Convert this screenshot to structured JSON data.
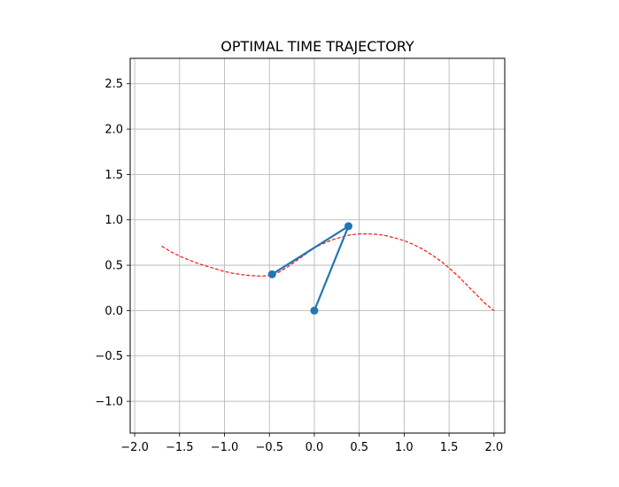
{
  "chart_data": {
    "type": "line",
    "title": "OPTIMAL TIME TRAJECTORY",
    "xlabel": "",
    "ylabel": "",
    "xlim": [
      -2.05,
      2.12
    ],
    "ylim": [
      -1.35,
      2.78
    ],
    "grid": true,
    "xticks": [
      -2.0,
      -1.5,
      -1.0,
      -0.5,
      0.0,
      0.5,
      1.0,
      1.5,
      2.0
    ],
    "xtick_labels": [
      "−2.0",
      "−1.5",
      "−1.0",
      "−0.5",
      "0.0",
      "0.5",
      "1.0",
      "1.5",
      "2.0"
    ],
    "yticks": [
      -1.0,
      -0.5,
      0.0,
      0.5,
      1.0,
      1.5,
      2.0,
      2.5
    ],
    "ytick_labels": [
      "−1.0",
      "−0.5",
      "0.0",
      "0.5",
      "1.0",
      "1.5",
      "2.0",
      "2.5"
    ],
    "series": [
      {
        "style": "dashed",
        "color": "#ff0000",
        "x": [
          -1.7,
          -1.6,
          -1.5,
          -1.4,
          -1.3,
          -1.2,
          -1.1,
          -1.0,
          -0.9,
          -0.8,
          -0.7,
          -0.6,
          -0.5,
          -0.45,
          -0.4,
          -0.3,
          -0.2,
          -0.1,
          0.0,
          0.1,
          0.2,
          0.3,
          0.4,
          0.5,
          0.6,
          0.7,
          0.8,
          0.9,
          1.0,
          1.1,
          1.2,
          1.3,
          1.4,
          1.5,
          1.6,
          1.7,
          1.8,
          1.9,
          1.95,
          2.0
        ],
        "y": [
          0.71,
          0.65,
          0.6,
          0.56,
          0.52,
          0.49,
          0.46,
          0.43,
          0.41,
          0.395,
          0.385,
          0.38,
          0.385,
          0.4,
          0.42,
          0.48,
          0.55,
          0.62,
          0.69,
          0.74,
          0.78,
          0.81,
          0.835,
          0.845,
          0.845,
          0.84,
          0.825,
          0.8,
          0.77,
          0.73,
          0.68,
          0.62,
          0.55,
          0.47,
          0.38,
          0.28,
          0.18,
          0.08,
          0.04,
          0.0
        ]
      },
      {
        "style": "solid",
        "marker": "circle",
        "color": "#1f77b4",
        "x": [
          0.0,
          0.38,
          -0.47
        ],
        "y": [
          0.0,
          0.93,
          0.4
        ]
      }
    ]
  }
}
